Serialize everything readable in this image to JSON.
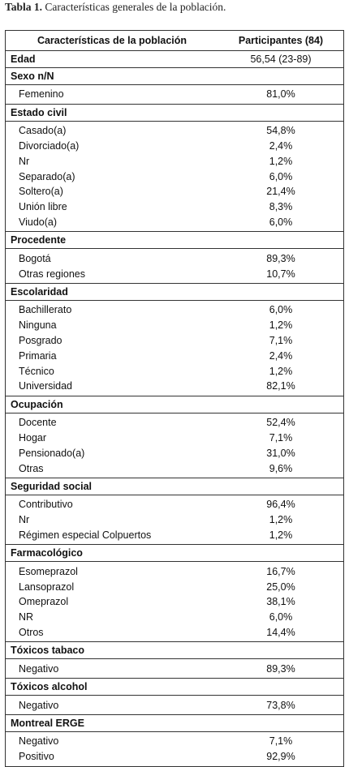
{
  "caption": {
    "label": "Tabla 1.",
    "text": "Características generales de la población."
  },
  "table": {
    "header": [
      "Características de la población",
      "Participantes (84)"
    ],
    "sections": [
      {
        "title": "Edad",
        "value": "56,54 (23-89)",
        "rows": []
      },
      {
        "title": "Sexo n/N",
        "rows": [
          [
            "Femenino",
            "81,0%"
          ]
        ]
      },
      {
        "title": "Estado civil",
        "rows": [
          [
            "Casado(a)",
            "54,8%"
          ],
          [
            "Divorciado(a)",
            "2,4%"
          ],
          [
            "Nr",
            "1,2%"
          ],
          [
            "Separado(a)",
            "6,0%"
          ],
          [
            "Soltero(a)",
            "21,4%"
          ],
          [
            "Unión libre",
            "8,3%"
          ],
          [
            "Viudo(a)",
            "6,0%"
          ]
        ]
      },
      {
        "title": "Procedente",
        "rows": [
          [
            "Bogotá",
            "89,3%"
          ],
          [
            "Otras regiones",
            "10,7%"
          ]
        ]
      },
      {
        "title": "Escolaridad",
        "rows": [
          [
            "Bachillerato",
            "6,0%"
          ],
          [
            "Ninguna",
            "1,2%"
          ],
          [
            "Posgrado",
            "7,1%"
          ],
          [
            "Primaria",
            "2,4%"
          ],
          [
            "Técnico",
            "1,2%"
          ],
          [
            "Universidad",
            "82,1%"
          ]
        ]
      },
      {
        "title": "Ocupación",
        "rows": [
          [
            "Docente",
            "52,4%"
          ],
          [
            "Hogar",
            "7,1%"
          ],
          [
            "Pensionado(a)",
            "31,0%"
          ],
          [
            "Otras",
            "9,6%"
          ]
        ]
      },
      {
        "title": "Seguridad social",
        "rows": [
          [
            "Contributivo",
            "96,4%"
          ],
          [
            "Nr",
            "1,2%"
          ],
          [
            "Régimen especial Colpuertos",
            "1,2%"
          ]
        ]
      },
      {
        "title": "Farmacológico",
        "rows": [
          [
            "Esomeprazol",
            "16,7%"
          ],
          [
            "Lansoprazol",
            "25,0%"
          ],
          [
            "Omeprazol",
            "38,1%"
          ],
          [
            "NR",
            "6,0%"
          ],
          [
            "Otros",
            "14,4%"
          ]
        ]
      },
      {
        "title": "Tóxicos tabaco",
        "rows": [
          [
            "Negativo",
            "89,3%"
          ]
        ]
      },
      {
        "title": "Tóxicos alcohol",
        "rows": [
          [
            "Negativo",
            "73,8%"
          ]
        ]
      },
      {
        "title": "Montreal ERGE",
        "rows": [
          [
            "Negativo",
            "7,1%"
          ],
          [
            "Positivo",
            "92,9%"
          ]
        ]
      }
    ]
  }
}
